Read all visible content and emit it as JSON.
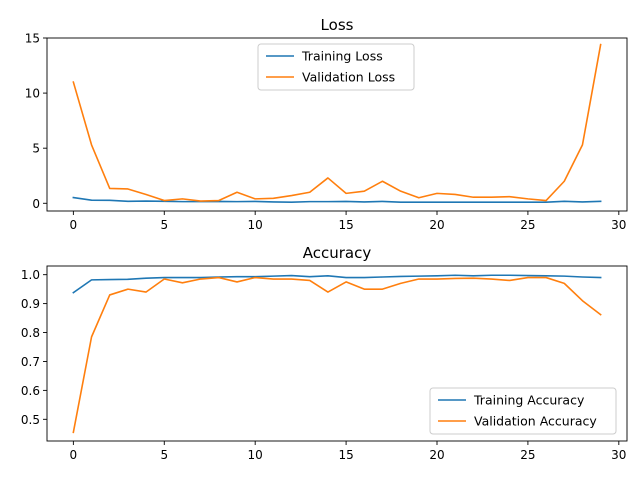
{
  "chart_data": [
    {
      "type": "line",
      "title": "Loss",
      "xlabel": "",
      "ylabel": "",
      "xlim": [
        -1.45,
        30.45
      ],
      "ylim": [
        -0.7,
        15.0
      ],
      "xticks": [
        0,
        5,
        10,
        15,
        20,
        25,
        30
      ],
      "yticks": [
        0,
        5,
        10,
        15
      ],
      "xtick_labels": [
        "0",
        "5",
        "10",
        "15",
        "20",
        "25",
        "30"
      ],
      "ytick_labels": [
        "0",
        "5",
        "10",
        "15"
      ],
      "legend": "upper center",
      "grid": false,
      "x": [
        0,
        1,
        2,
        3,
        4,
        5,
        6,
        7,
        8,
        9,
        10,
        11,
        12,
        13,
        14,
        15,
        16,
        17,
        18,
        19,
        20,
        21,
        22,
        23,
        24,
        25,
        26,
        27,
        28,
        29
      ],
      "series": [
        {
          "name": "Training Loss",
          "color": "#1f77b4",
          "values": [
            0.52,
            0.28,
            0.27,
            0.18,
            0.2,
            0.18,
            0.15,
            0.15,
            0.17,
            0.15,
            0.17,
            0.12,
            0.1,
            0.15,
            0.15,
            0.17,
            0.12,
            0.17,
            0.1,
            0.1,
            0.1,
            0.1,
            0.1,
            0.1,
            0.1,
            0.1,
            0.1,
            0.18,
            0.12,
            0.18
          ]
        },
        {
          "name": "Validation Loss",
          "color": "#ff7f0e",
          "values": [
            11.0,
            5.3,
            1.35,
            1.3,
            0.8,
            0.25,
            0.4,
            0.2,
            0.25,
            1.0,
            0.4,
            0.45,
            0.7,
            1.0,
            2.3,
            0.9,
            1.1,
            2.0,
            1.1,
            0.5,
            0.9,
            0.8,
            0.55,
            0.55,
            0.6,
            0.4,
            0.25,
            2.0,
            5.3,
            14.4
          ]
        }
      ]
    },
    {
      "type": "line",
      "title": "Accuracy",
      "xlabel": "",
      "ylabel": "",
      "xlim": [
        -1.45,
        30.45
      ],
      "ylim": [
        0.425,
        1.03
      ],
      "xticks": [
        0,
        5,
        10,
        15,
        20,
        25,
        30
      ],
      "yticks": [
        0.5,
        0.6,
        0.7,
        0.8,
        0.9,
        1.0
      ],
      "xtick_labels": [
        "0",
        "5",
        "10",
        "15",
        "20",
        "25",
        "30"
      ],
      "ytick_labels": [
        "0.5",
        "0.6",
        "0.7",
        "0.8",
        "0.9",
        "1.0"
      ],
      "legend": "lower right",
      "grid": false,
      "x": [
        0,
        1,
        2,
        3,
        4,
        5,
        6,
        7,
        8,
        9,
        10,
        11,
        12,
        13,
        14,
        15,
        16,
        17,
        18,
        19,
        20,
        21,
        22,
        23,
        24,
        25,
        26,
        27,
        28,
        29
      ],
      "series": [
        {
          "name": "Training Accuracy",
          "color": "#1f77b4",
          "values": [
            0.938,
            0.982,
            0.983,
            0.984,
            0.988,
            0.99,
            0.99,
            0.99,
            0.992,
            0.993,
            0.993,
            0.995,
            0.997,
            0.993,
            0.996,
            0.99,
            0.99,
            0.992,
            0.994,
            0.995,
            0.996,
            0.998,
            0.996,
            0.998,
            0.998,
            0.997,
            0.996,
            0.995,
            0.992,
            0.99
          ]
        },
        {
          "name": "Validation Accuracy",
          "color": "#ff7f0e",
          "values": [
            0.455,
            0.785,
            0.93,
            0.95,
            0.94,
            0.985,
            0.972,
            0.985,
            0.99,
            0.975,
            0.99,
            0.985,
            0.985,
            0.98,
            0.94,
            0.975,
            0.95,
            0.95,
            0.97,
            0.985,
            0.985,
            0.987,
            0.988,
            0.985,
            0.98,
            0.99,
            0.99,
            0.97,
            0.91,
            0.862
          ]
        }
      ]
    }
  ]
}
